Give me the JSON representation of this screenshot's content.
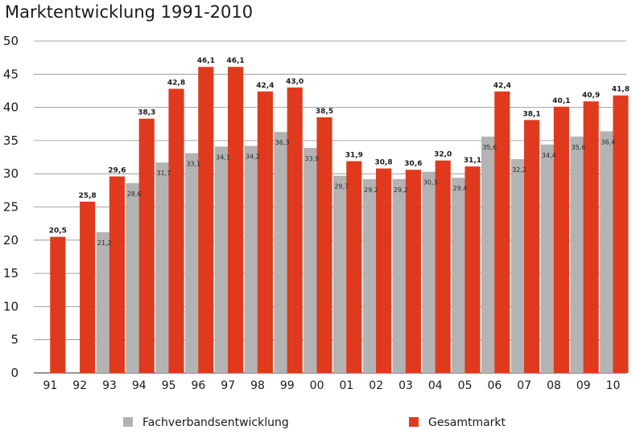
{
  "chart_data": {
    "type": "bar",
    "title": "Marktentwicklung 1991-2010",
    "xlabel": "",
    "ylabel": "",
    "ylim": [
      0,
      50
    ],
    "yticks": [
      0,
      5,
      10,
      15,
      20,
      25,
      30,
      35,
      40,
      45,
      50
    ],
    "categories": [
      "91",
      "92",
      "93",
      "94",
      "95",
      "96",
      "97",
      "98",
      "99",
      "00",
      "01",
      "02",
      "03",
      "04",
      "05",
      "06",
      "07",
      "08",
      "09",
      "10"
    ],
    "series": [
      {
        "name": "Fachverbandsentwicklung",
        "color": "#b3b3b3",
        "values": [
          null,
          null,
          21.2,
          28.6,
          31.7,
          33.1,
          34.1,
          34.2,
          36.3,
          33.9,
          29.7,
          29.2,
          29.2,
          30.3,
          29.4,
          35.6,
          32.2,
          34.4,
          35.6,
          36.4
        ],
        "labels": [
          "",
          "",
          "21,2",
          "28,6",
          "31,7",
          "33,1",
          "34,1",
          "34,2",
          "36,3",
          "33,9",
          "29,7",
          "29,2",
          "29,2",
          "30,3",
          "29,4",
          "35,6",
          "32,2",
          "34,4",
          "35,6",
          "36,4"
        ]
      },
      {
        "name": "Gesamtmarkt",
        "color": "#e03a1e",
        "values": [
          20.5,
          25.8,
          29.6,
          38.3,
          42.8,
          46.1,
          46.1,
          42.4,
          43.0,
          38.5,
          31.9,
          30.8,
          30.6,
          32.0,
          31.1,
          42.4,
          38.1,
          40.1,
          40.9,
          41.8
        ],
        "labels": [
          "20,5",
          "25,8",
          "29,6",
          "38,3",
          "42,8",
          "46,1",
          "46,1",
          "42,4",
          "43,0",
          "38,5",
          "31,9",
          "30,8",
          "30,6",
          "32,0",
          "31,1",
          "42,4",
          "38,1",
          "40,1",
          "40,9",
          "41,8"
        ]
      }
    ],
    "grid": true,
    "legend": "bottom"
  }
}
